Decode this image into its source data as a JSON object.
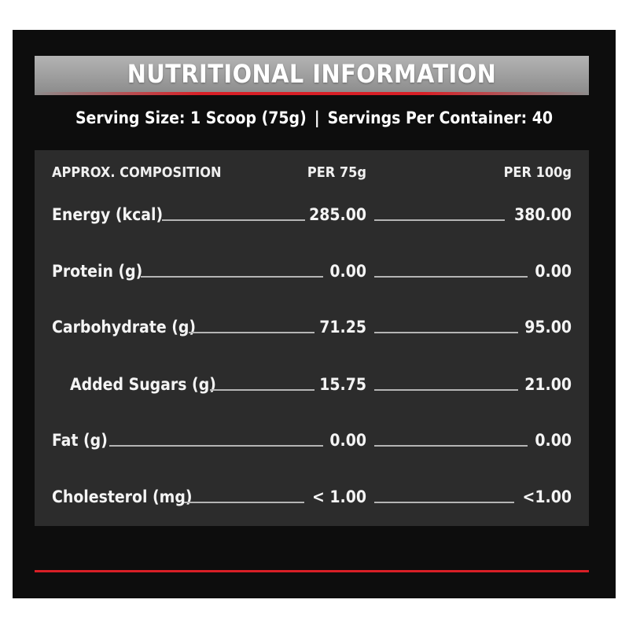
{
  "title": "NUTRITIONAL INFORMATION",
  "serving": {
    "size": "Serving Size: 1 Scoop (75g)",
    "separator": "|",
    "per_container": "Servings Per Container: 40"
  },
  "table": {
    "headers": {
      "name": "APPROX. COMPOSITION",
      "per_75": "PER 75g",
      "per_100": "PER 100g"
    },
    "rows": [
      {
        "label": "Energy (kcal)",
        "per_75": "285.00",
        "per_100": "380.00"
      },
      {
        "label": "Protein (g)",
        "per_75": "0.00",
        "per_100": "0.00"
      },
      {
        "label": "Carbohydrate (g)",
        "per_75": "71.25",
        "per_100": "95.00"
      },
      {
        "label": "Added Sugars (g)",
        "per_75": "15.75",
        "per_100": "21.00"
      },
      {
        "label": "Fat (g)",
        "per_75": "0.00",
        "per_100": "0.00"
      },
      {
        "label": "Cholesterol (mg)",
        "per_75": "< 1.00",
        "per_100": "<1.00"
      }
    ]
  },
  "colors": {
    "background": "#0d0d0d",
    "table_background": "#2c2c2c",
    "title_bar": "#a6a6a6",
    "accent_red": "#d81f26",
    "text": "#f4f4f4"
  }
}
